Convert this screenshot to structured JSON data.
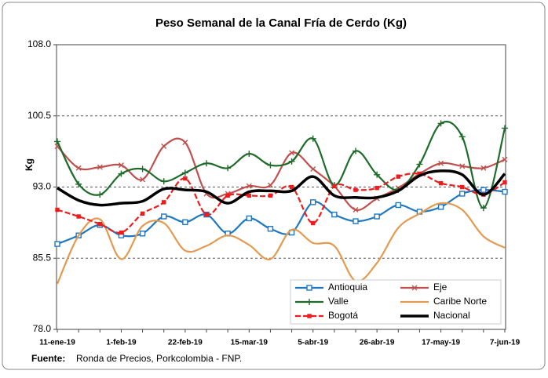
{
  "chart_data": {
    "type": "line",
    "title": "Peso Semanal de la Canal Fría  de Cerdo (Kg)",
    "y_label": "Kg",
    "source_label": "Fuente:",
    "source": "Ronda de Precios, Porkcolombia  - FNP.",
    "categories": [
      "11-ene-19",
      null,
      null,
      "1-feb-19",
      null,
      null,
      "22-feb-19",
      null,
      null,
      "15-mar-19",
      null,
      null,
      "5-abr-19",
      null,
      null,
      "26-abr-19",
      null,
      null,
      "17-may-19",
      null,
      null,
      "7-jun-19"
    ],
    "ylim": [
      78,
      108
    ],
    "yticks": [
      {
        "value": 78,
        "label": "78.0"
      },
      {
        "value": 85.5,
        "label": "85.5"
      },
      {
        "value": 93,
        "label": "93.0"
      },
      {
        "value": 100.5,
        "label": "100.5"
      },
      {
        "value": 108,
        "label": "108.0"
      }
    ],
    "grid": true,
    "legend": "bottom-right",
    "series": [
      {
        "name": "Antioquia",
        "color": "#1f77c0",
        "marker": "square",
        "values": [
          87.0,
          87.9,
          89.0,
          87.9,
          88.1,
          89.9,
          89.3,
          90.1,
          88.1,
          89.7,
          88.6,
          88.2,
          91.4,
          90.1,
          89.4,
          89.9,
          91.1,
          90.4,
          90.9,
          92.3,
          92.7,
          92.5
        ]
      },
      {
        "name": "Eje",
        "color": "#c0504d",
        "marker": "x",
        "values": [
          97.3,
          95.0,
          95.1,
          95.3,
          93.8,
          97.3,
          97.7,
          92.3,
          92.3,
          93.1,
          93.2,
          96.6,
          94.9,
          93.1,
          90.6,
          91.8,
          92.9,
          94.4,
          95.5,
          95.2,
          95.0,
          95.9
        ]
      },
      {
        "name": "Valle",
        "color": "#1e6b2a",
        "marker": "plus",
        "values": [
          97.8,
          93.3,
          92.2,
          94.4,
          94.9,
          93.6,
          94.5,
          95.5,
          95.0,
          96.5,
          95.3,
          95.7,
          98.1,
          93.2,
          96.8,
          94.3,
          92.7,
          95.4,
          99.7,
          98.3,
          90.8,
          99.2
        ]
      },
      {
        "name": "Caribe Norte",
        "color": "#e39a4f",
        "marker": "none",
        "values": [
          82.8,
          87.9,
          89.6,
          85.4,
          88.9,
          89.2,
          86.3,
          86.8,
          87.9,
          86.9,
          85.4,
          88.5,
          87.1,
          86.8,
          83.1,
          85.0,
          88.7,
          90.2,
          91.3,
          90.6,
          87.8,
          86.6
        ]
      },
      {
        "name": "Bogotá",
        "color": "#ee1c1c",
        "marker": "dot",
        "dashed": true,
        "values": [
          90.6,
          89.9,
          89.1,
          88.2,
          90.2,
          91.4,
          93.9,
          90.1,
          92.1,
          92.1,
          92.1,
          93.0,
          89.2,
          93.1,
          92.7,
          92.9,
          94.1,
          94.4,
          93.4,
          93.0,
          92.2,
          93.5
        ]
      },
      {
        "name": "Nacional",
        "color": "#000000",
        "marker": "none",
        "bold": true,
        "values": [
          92.9,
          91.6,
          91.1,
          91.3,
          91.5,
          92.8,
          92.7,
          92.5,
          91.3,
          92.5,
          92.6,
          92.6,
          94.1,
          92.1,
          91.9,
          91.9,
          92.6,
          94.2,
          94.7,
          94.3,
          92.2,
          94.4
        ]
      }
    ]
  }
}
